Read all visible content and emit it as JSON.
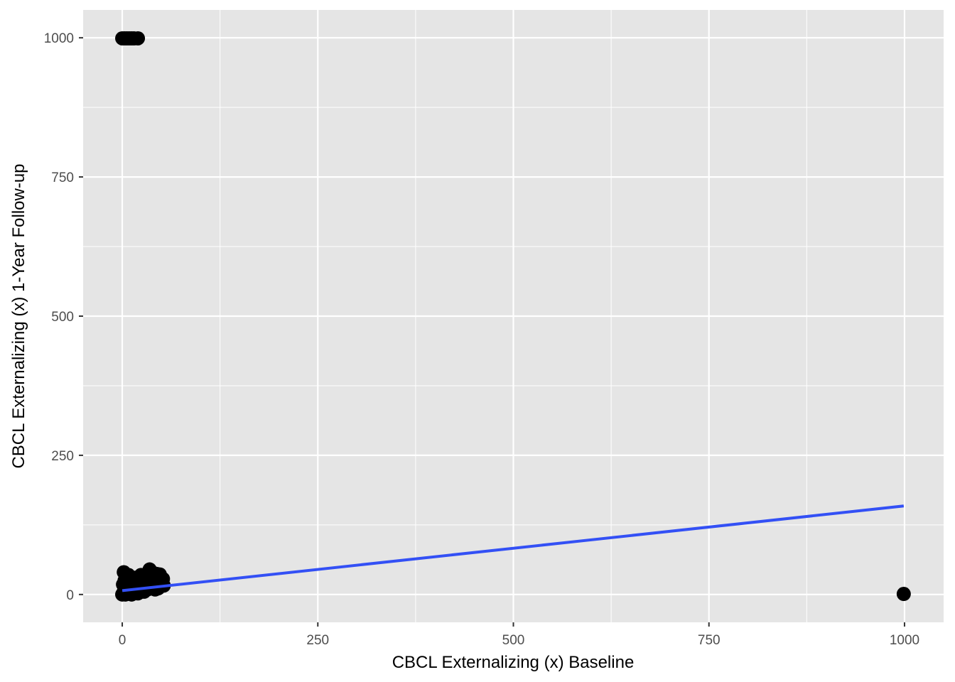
{
  "chart_data": {
    "type": "scatter",
    "title": "",
    "xlabel": "CBCL Externalizing (x) Baseline",
    "ylabel": "CBCL Externalizing (x) 1-Year Follow-up",
    "xlim": [
      -50,
      1050
    ],
    "ylim": [
      -50,
      1050
    ],
    "x_ticks": [
      0,
      250,
      500,
      750,
      1000
    ],
    "y_ticks": [
      0,
      250,
      500,
      750,
      1000
    ],
    "x_tick_labels": [
      "0",
      "250",
      "500",
      "750",
      "1000"
    ],
    "y_tick_labels": [
      "0",
      "250",
      "500",
      "750",
      "1000"
    ],
    "x_minor_ticks": [
      125,
      375,
      625,
      875
    ],
    "y_minor_ticks": [
      125,
      375,
      625,
      875
    ],
    "grid": true,
    "legend": "none",
    "colors": {
      "panel_background": "#e5e5e5",
      "grid_line": "#ffffff",
      "points": "#000000",
      "fit_line": "#3350f5",
      "tick_label": "#4d4d4d",
      "axis_title": "#000000"
    },
    "points": [
      {
        "x": 0,
        "y": 999
      },
      {
        "x": 3,
        "y": 999
      },
      {
        "x": 6,
        "y": 999
      },
      {
        "x": 9,
        "y": 999
      },
      {
        "x": 12,
        "y": 999
      },
      {
        "x": 15,
        "y": 999
      },
      {
        "x": 20,
        "y": 999
      },
      {
        "x": 999,
        "y": 1
      },
      {
        "x": 0,
        "y": 0
      },
      {
        "x": 1,
        "y": 2
      },
      {
        "x": 2,
        "y": 5
      },
      {
        "x": 3,
        "y": 1
      },
      {
        "x": 4,
        "y": 8
      },
      {
        "x": 5,
        "y": 3
      },
      {
        "x": 6,
        "y": 12
      },
      {
        "x": 7,
        "y": 6
      },
      {
        "x": 8,
        "y": 15
      },
      {
        "x": 9,
        "y": 4
      },
      {
        "x": 10,
        "y": 10
      },
      {
        "x": 11,
        "y": 20
      },
      {
        "x": 12,
        "y": 7
      },
      {
        "x": 13,
        "y": 14
      },
      {
        "x": 14,
        "y": 25
      },
      {
        "x": 15,
        "y": 9
      },
      {
        "x": 16,
        "y": 18
      },
      {
        "x": 17,
        "y": 30
      },
      {
        "x": 18,
        "y": 12
      },
      {
        "x": 19,
        "y": 22
      },
      {
        "x": 20,
        "y": 16
      },
      {
        "x": 21,
        "y": 28
      },
      {
        "x": 22,
        "y": 11
      },
      {
        "x": 23,
        "y": 24
      },
      {
        "x": 24,
        "y": 35
      },
      {
        "x": 25,
        "y": 19
      },
      {
        "x": 26,
        "y": 13
      },
      {
        "x": 27,
        "y": 27
      },
      {
        "x": 28,
        "y": 21
      },
      {
        "x": 29,
        "y": 33
      },
      {
        "x": 30,
        "y": 15
      },
      {
        "x": 31,
        "y": 26
      },
      {
        "x": 32,
        "y": 38
      },
      {
        "x": 33,
        "y": 20
      },
      {
        "x": 34,
        "y": 30
      },
      {
        "x": 35,
        "y": 45
      },
      {
        "x": 36,
        "y": 17
      },
      {
        "x": 37,
        "y": 24
      },
      {
        "x": 38,
        "y": 40
      },
      {
        "x": 39,
        "y": 29
      },
      {
        "x": 40,
        "y": 22
      },
      {
        "x": 41,
        "y": 34
      },
      {
        "x": 42,
        "y": 18
      },
      {
        "x": 43,
        "y": 26
      },
      {
        "x": 44,
        "y": 37
      },
      {
        "x": 45,
        "y": 23
      },
      {
        "x": 46,
        "y": 31
      },
      {
        "x": 47,
        "y": 14
      },
      {
        "x": 48,
        "y": 36
      },
      {
        "x": 50,
        "y": 20
      },
      {
        "x": 52,
        "y": 28
      },
      {
        "x": 53,
        "y": 16
      },
      {
        "x": 2,
        "y": 40
      },
      {
        "x": 5,
        "y": 30
      },
      {
        "x": 8,
        "y": 35
      },
      {
        "x": 1,
        "y": 18
      },
      {
        "x": 3,
        "y": 25
      },
      {
        "x": 6,
        "y": 2
      },
      {
        "x": 10,
        "y": 1
      },
      {
        "x": 14,
        "y": 3
      },
      {
        "x": 18,
        "y": 5
      },
      {
        "x": 22,
        "y": 4
      },
      {
        "x": 26,
        "y": 6
      },
      {
        "x": 30,
        "y": 8
      },
      {
        "x": 34,
        "y": 10
      },
      {
        "x": 38,
        "y": 12
      },
      {
        "x": 42,
        "y": 9
      },
      {
        "x": 46,
        "y": 11
      },
      {
        "x": 4,
        "y": 0
      },
      {
        "x": 12,
        "y": 0
      },
      {
        "x": 20,
        "y": 2
      },
      {
        "x": 28,
        "y": 5
      }
    ],
    "fit_line": {
      "x": [
        0,
        999
      ],
      "y": [
        7,
        159
      ]
    }
  }
}
